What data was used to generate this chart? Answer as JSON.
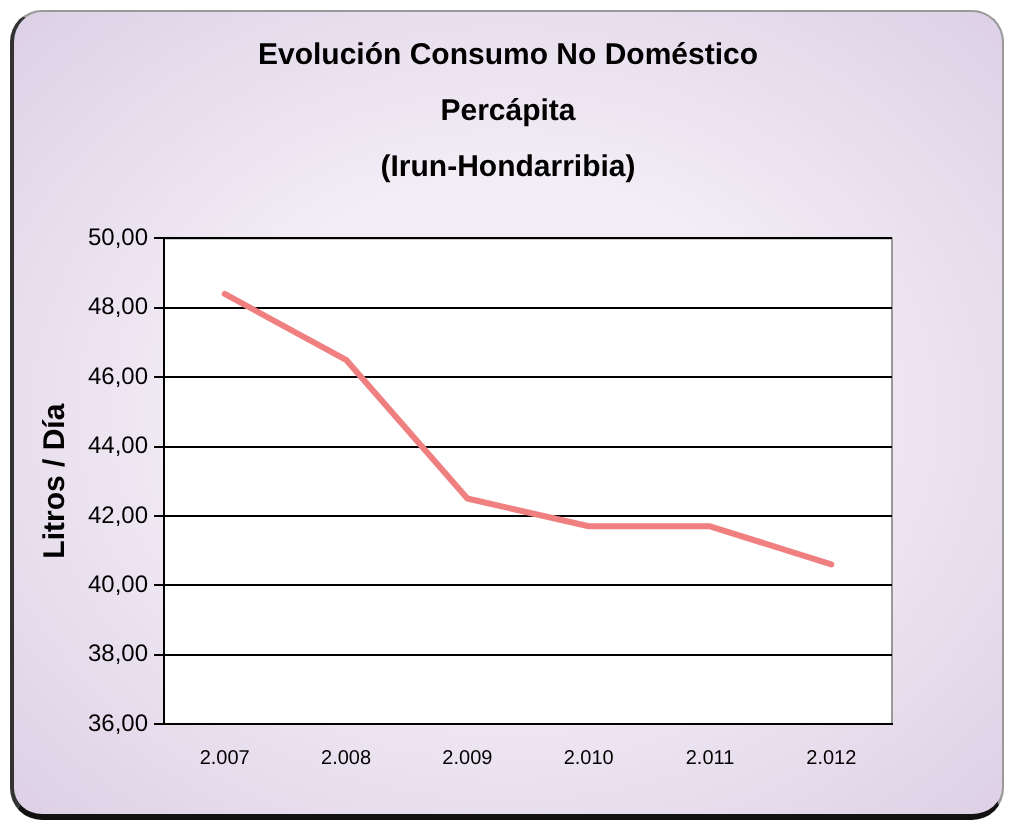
{
  "chart_data": {
    "type": "line",
    "title": "Evolución Consumo No Doméstico\nPercápita\n(Irun-Hondarribia)",
    "ylabel": "Litros / Día",
    "categories": [
      "2.007",
      "2.008",
      "2.009",
      "2.010",
      "2.011",
      "2.012"
    ],
    "series": [
      {
        "color": "#f08080",
        "values": [
          48.4,
          46.5,
          42.5,
          41.7,
          41.7,
          40.6
        ]
      }
    ],
    "ylim": [
      36,
      50
    ],
    "yticks": [
      {
        "value": 36,
        "label": "36,00"
      },
      {
        "value": 38,
        "label": "38,00"
      },
      {
        "value": 40,
        "label": "40,00"
      },
      {
        "value": 42,
        "label": "42,00"
      },
      {
        "value": 44,
        "label": "44,00"
      },
      {
        "value": 46,
        "label": "46,00"
      },
      {
        "value": 48,
        "label": "48,00"
      },
      {
        "value": 50,
        "label": "50,00"
      }
    ],
    "grid": "y",
    "legend": false,
    "marker": "none",
    "line_style": "solid"
  }
}
